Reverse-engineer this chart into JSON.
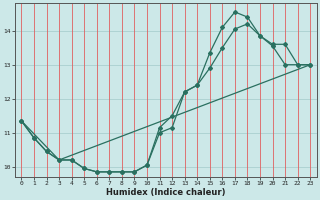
{
  "title": "",
  "xlabel": "Humidex (Indice chaleur)",
  "background_color": "#cce8e8",
  "grid_color_h": "#aacfcf",
  "grid_color_v": "#e06060",
  "line_color": "#2a7060",
  "xlim": [
    -0.5,
    23.5
  ],
  "ylim": [
    9.7,
    14.8
  ],
  "xticks": [
    0,
    1,
    2,
    3,
    4,
    5,
    6,
    7,
    8,
    9,
    10,
    11,
    12,
    13,
    14,
    15,
    16,
    17,
    18,
    19,
    20,
    21,
    22,
    23
  ],
  "yticks": [
    10,
    11,
    12,
    13,
    14
  ],
  "line1_x": [
    0,
    1,
    2,
    3,
    4,
    5,
    6,
    7,
    8,
    9,
    10,
    11,
    12,
    13,
    14,
    15,
    16,
    17,
    18,
    19,
    20,
    21,
    22,
    23
  ],
  "line1_y": [
    11.35,
    10.85,
    10.45,
    10.2,
    10.2,
    9.95,
    9.85,
    9.85,
    9.85,
    9.85,
    10.05,
    11.0,
    11.15,
    12.2,
    12.4,
    12.9,
    13.5,
    14.05,
    14.2,
    13.85,
    13.55,
    13.0,
    13.0,
    13.0
  ],
  "line2_x": [
    0,
    1,
    2,
    3,
    4,
    5,
    6,
    7,
    8,
    9,
    10,
    11,
    12,
    13,
    14,
    15,
    16,
    17,
    18,
    19,
    20,
    21,
    22,
    23
  ],
  "line2_y": [
    11.35,
    10.85,
    10.45,
    10.2,
    10.2,
    9.95,
    9.85,
    9.85,
    9.85,
    9.85,
    10.05,
    11.15,
    11.5,
    12.2,
    12.4,
    13.35,
    14.1,
    14.55,
    14.4,
    13.85,
    13.6,
    13.6,
    13.0,
    13.0
  ],
  "line3_x": [
    0,
    3,
    23
  ],
  "line3_y": [
    11.35,
    10.2,
    13.0
  ],
  "xlabel_fontsize": 6,
  "tick_fontsize": 4.5
}
